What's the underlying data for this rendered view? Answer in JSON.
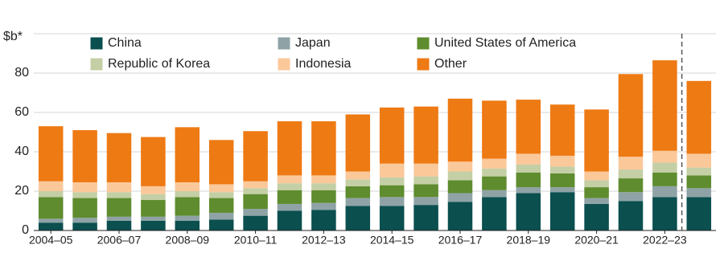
{
  "chart_data": {
    "type": "stacked_bar",
    "y_label": "$b*",
    "categories": [
      "2004–05",
      null,
      "2006–07",
      null,
      "2008–09",
      null,
      "2010–11",
      null,
      "2012–13",
      null,
      "2014–15",
      null,
      "2016–17",
      null,
      "2018–19",
      null,
      "2020–21",
      null,
      "2022–23",
      null
    ],
    "series": [
      {
        "name": "China",
        "color": "#0b4f4f",
        "values": [
          4,
          4,
          5,
          5,
          5,
          5.5,
          7.5,
          10,
          10.5,
          12.5,
          12.5,
          13,
          14.5,
          17,
          19,
          19.5,
          13.5,
          15,
          17,
          17
        ]
      },
      {
        "name": "Japan",
        "color": "#8fa3a6",
        "values": [
          2,
          2.5,
          2,
          2,
          2.5,
          3.5,
          3.5,
          3.5,
          3.5,
          4,
          4.5,
          4,
          4.5,
          3.5,
          3,
          2.5,
          3,
          4.5,
          5.5,
          4.5
        ]
      },
      {
        "name": "United States of America",
        "color": "#5f8c2e",
        "values": [
          11,
          10,
          9.5,
          8.5,
          9.5,
          7.5,
          7.5,
          7,
          6.5,
          6,
          6,
          6.5,
          6.5,
          7,
          7.5,
          7,
          5.5,
          7,
          7,
          6.5
        ]
      },
      {
        "name": "Republic of Korea",
        "color": "#c4cfa5",
        "values": [
          3,
          3,
          3,
          3,
          3,
          3,
          3,
          3.5,
          3.5,
          3.5,
          4,
          4,
          4.5,
          4,
          4,
          3.5,
          3.5,
          4.5,
          5,
          4
        ]
      },
      {
        "name": "Indonesia",
        "color": "#fbc89a",
        "values": [
          5,
          5,
          5,
          4,
          4.5,
          4,
          3.5,
          4,
          4,
          4,
          7,
          6.5,
          5,
          5,
          5.5,
          5.5,
          4.5,
          6.5,
          6,
          7
        ]
      },
      {
        "name": "Other",
        "color": "#ee7a14",
        "values": [
          28,
          26.5,
          25,
          25,
          28,
          22.5,
          25.5,
          27.5,
          27.5,
          29,
          28.5,
          29,
          32,
          29.5,
          27.5,
          26,
          31.5,
          42,
          46,
          37
        ]
      }
    ],
    "ylim": [
      0,
      100
    ],
    "yticks": [
      0,
      20,
      40,
      60,
      80
    ],
    "grid": true
  }
}
